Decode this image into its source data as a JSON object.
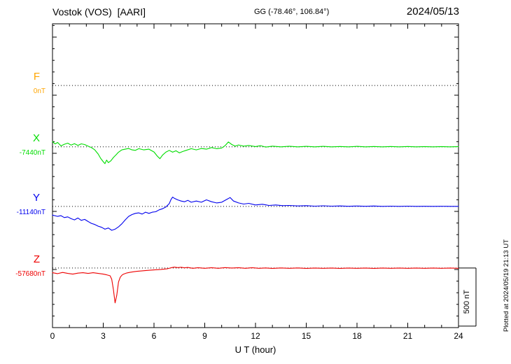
{
  "header": {
    "station": "Vostok (VOS)  [AARI]",
    "coords": "GG (-78.46°, 106.84°)",
    "date": "2024/05/13"
  },
  "x_axis": {
    "label": "U T (hour)",
    "ticks": [
      "0",
      "3",
      "6",
      "9",
      "12",
      "15",
      "18",
      "21",
      "24"
    ]
  },
  "scale_bar": {
    "label": "500 nT"
  },
  "plotted_note": "Plotted at 2024/05/19 21:13 UT",
  "chart_data": {
    "type": "line",
    "title": "Vostok (VOS) [AARI] magnetogram",
    "date": "2024/05/13",
    "xlabel": "U T (hour)",
    "x_range_hours": [
      0,
      24
    ],
    "x_major_tick_hours": 3,
    "x_minor_tick_hours": 1,
    "scale_bar_nT": 500,
    "grid": "dotted horizontal baseline per component",
    "units": "points are [UT hour, nT offset from component baseline]",
    "components": [
      {
        "name": "F",
        "color": "#ffa500",
        "baseline_label": "0nT",
        "baseline_nT": 0,
        "trace_visible": false,
        "points": []
      },
      {
        "name": "X",
        "color": "#00dd00",
        "baseline_label": "-7440nT",
        "baseline_nT": -7440,
        "trace_visible": true,
        "points": [
          [
            0,
            45
          ],
          [
            0.15,
            25
          ],
          [
            0.3,
            38
          ],
          [
            0.5,
            8
          ],
          [
            0.7,
            22
          ],
          [
            0.9,
            32
          ],
          [
            1.1,
            15
          ],
          [
            1.3,
            27
          ],
          [
            1.5,
            12
          ],
          [
            1.7,
            26
          ],
          [
            1.9,
            20
          ],
          [
            2.1,
            6
          ],
          [
            2.3,
            -6
          ],
          [
            2.5,
            -26
          ],
          [
            2.7,
            -62
          ],
          [
            2.85,
            -100
          ],
          [
            3,
            -128
          ],
          [
            3.1,
            -145
          ],
          [
            3.2,
            -114
          ],
          [
            3.3,
            -136
          ],
          [
            3.45,
            -120
          ],
          [
            3.6,
            -92
          ],
          [
            3.75,
            -70
          ],
          [
            3.9,
            -46
          ],
          [
            4.1,
            -26
          ],
          [
            4.3,
            -20
          ],
          [
            4.5,
            -14
          ],
          [
            4.7,
            -26
          ],
          [
            4.9,
            -30
          ],
          [
            5.1,
            -16
          ],
          [
            5.4,
            -26
          ],
          [
            5.7,
            -20
          ],
          [
            6,
            -44
          ],
          [
            6.2,
            -80
          ],
          [
            6.35,
            -102
          ],
          [
            6.5,
            -72
          ],
          [
            6.7,
            -46
          ],
          [
            6.9,
            -30
          ],
          [
            7.1,
            -46
          ],
          [
            7.3,
            -34
          ],
          [
            7.5,
            -52
          ],
          [
            7.7,
            -40
          ],
          [
            7.9,
            -30
          ],
          [
            8.2,
            -16
          ],
          [
            8.5,
            -26
          ],
          [
            8.8,
            -14
          ],
          [
            9.1,
            -20
          ],
          [
            9.4,
            -6
          ],
          [
            9.7,
            -16
          ],
          [
            10,
            -10
          ],
          [
            10.2,
            10
          ],
          [
            10.4,
            42
          ],
          [
            10.6,
            20
          ],
          [
            10.8,
            6
          ],
          [
            11,
            16
          ],
          [
            11.3,
            6
          ],
          [
            11.6,
            12
          ],
          [
            12,
            2
          ],
          [
            12.3,
            10
          ],
          [
            12.6,
            -2
          ],
          [
            13,
            6
          ],
          [
            13.5,
            0
          ],
          [
            14,
            5
          ],
          [
            14.5,
            0
          ],
          [
            15,
            4
          ],
          [
            15.5,
            0
          ],
          [
            16,
            4
          ],
          [
            16.5,
            0
          ],
          [
            17,
            3
          ],
          [
            17.5,
            0
          ],
          [
            18,
            4
          ],
          [
            18.5,
            0
          ],
          [
            19,
            3
          ],
          [
            19.5,
            0
          ],
          [
            20,
            3
          ],
          [
            20.5,
            0
          ],
          [
            21,
            3
          ],
          [
            21.5,
            0
          ],
          [
            22,
            2
          ],
          [
            22.5,
            0
          ],
          [
            23,
            2
          ],
          [
            23.5,
            0
          ],
          [
            24,
            2
          ]
        ]
      },
      {
        "name": "Y",
        "color": "#0000ee",
        "baseline_label": "-11140nT",
        "baseline_nT": -11140,
        "trace_visible": true,
        "points": [
          [
            0,
            -75
          ],
          [
            0.3,
            -86
          ],
          [
            0.5,
            -80
          ],
          [
            0.7,
            -96
          ],
          [
            0.9,
            -90
          ],
          [
            1.1,
            -106
          ],
          [
            1.3,
            -116
          ],
          [
            1.5,
            -100
          ],
          [
            1.7,
            -120
          ],
          [
            1.9,
            -112
          ],
          [
            2.1,
            -130
          ],
          [
            2.3,
            -146
          ],
          [
            2.5,
            -156
          ],
          [
            2.7,
            -170
          ],
          [
            2.9,
            -180
          ],
          [
            3.1,
            -196
          ],
          [
            3.3,
            -186
          ],
          [
            3.5,
            -206
          ],
          [
            3.7,
            -196
          ],
          [
            3.9,
            -176
          ],
          [
            4.1,
            -150
          ],
          [
            4.3,
            -116
          ],
          [
            4.5,
            -86
          ],
          [
            4.7,
            -70
          ],
          [
            4.9,
            -60
          ],
          [
            5.1,
            -56
          ],
          [
            5.3,
            -66
          ],
          [
            5.5,
            -50
          ],
          [
            5.7,
            -60
          ],
          [
            5.9,
            -50
          ],
          [
            6.1,
            -46
          ],
          [
            6.3,
            -30
          ],
          [
            6.5,
            -20
          ],
          [
            6.7,
            -6
          ],
          [
            6.9,
            24
          ],
          [
            7,
            58
          ],
          [
            7.1,
            80
          ],
          [
            7.2,
            70
          ],
          [
            7.4,
            56
          ],
          [
            7.6,
            46
          ],
          [
            7.8,
            40
          ],
          [
            8,
            52
          ],
          [
            8.2,
            36
          ],
          [
            8.5,
            46
          ],
          [
            8.8,
            36
          ],
          [
            9.1,
            56
          ],
          [
            9.4,
            40
          ],
          [
            9.7,
            30
          ],
          [
            10,
            36
          ],
          [
            10.3,
            60
          ],
          [
            10.5,
            76
          ],
          [
            10.7,
            46
          ],
          [
            11,
            30
          ],
          [
            11.3,
            20
          ],
          [
            11.6,
            26
          ],
          [
            12,
            12
          ],
          [
            12.4,
            18
          ],
          [
            12.8,
            8
          ],
          [
            13.2,
            12
          ],
          [
            13.6,
            6
          ],
          [
            14,
            8
          ],
          [
            14.5,
            4
          ],
          [
            15,
            6
          ],
          [
            15.5,
            2
          ],
          [
            16,
            5
          ],
          [
            16.5,
            2
          ],
          [
            17,
            4
          ],
          [
            17.5,
            1
          ],
          [
            18,
            3
          ],
          [
            18.5,
            1
          ],
          [
            19,
            3
          ],
          [
            19.5,
            0
          ],
          [
            20,
            2
          ],
          [
            20.5,
            0
          ],
          [
            21,
            2
          ],
          [
            21.5,
            0
          ],
          [
            22,
            1
          ],
          [
            22.5,
            0
          ],
          [
            23,
            1
          ],
          [
            23.5,
            0
          ],
          [
            24,
            0
          ]
        ]
      },
      {
        "name": "Z",
        "color": "#ee0000",
        "baseline_label": "-57680nT",
        "baseline_nT": -57680,
        "trace_visible": true,
        "points": [
          [
            0,
            -40
          ],
          [
            0.3,
            -48
          ],
          [
            0.6,
            -38
          ],
          [
            0.9,
            -46
          ],
          [
            1.2,
            -52
          ],
          [
            1.5,
            -44
          ],
          [
            1.8,
            -40
          ],
          [
            2.1,
            -46
          ],
          [
            2.4,
            -40
          ],
          [
            2.7,
            -46
          ],
          [
            3,
            -52
          ],
          [
            3.2,
            -58
          ],
          [
            3.4,
            -66
          ],
          [
            3.5,
            -96
          ],
          [
            3.6,
            -185
          ],
          [
            3.7,
            -300
          ],
          [
            3.8,
            -235
          ],
          [
            3.9,
            -120
          ],
          [
            4,
            -80
          ],
          [
            4.1,
            -62
          ],
          [
            4.2,
            -52
          ],
          [
            4.4,
            -42
          ],
          [
            4.6,
            -36
          ],
          [
            4.8,
            -32
          ],
          [
            5,
            -28
          ],
          [
            5.3,
            -24
          ],
          [
            5.6,
            -20
          ],
          [
            6,
            -16
          ],
          [
            6.4,
            -12
          ],
          [
            6.8,
            -6
          ],
          [
            7,
            2
          ],
          [
            7.2,
            8
          ],
          [
            7.4,
            4
          ],
          [
            7.6,
            7
          ],
          [
            7.8,
            2
          ],
          [
            8,
            5
          ],
          [
            8.3,
            -2
          ],
          [
            8.6,
            3
          ],
          [
            9,
            -2
          ],
          [
            9.4,
            3
          ],
          [
            9.8,
            -2
          ],
          [
            10.2,
            4
          ],
          [
            10.6,
            0
          ],
          [
            11,
            3
          ],
          [
            11.4,
            -2
          ],
          [
            11.8,
            3
          ],
          [
            12.2,
            -2
          ],
          [
            12.6,
            1
          ],
          [
            13,
            -3
          ],
          [
            13.5,
            1
          ],
          [
            14,
            -2
          ],
          [
            14.5,
            1
          ],
          [
            15,
            -3
          ],
          [
            15.5,
            0
          ],
          [
            16,
            -2
          ],
          [
            16.5,
            0
          ],
          [
            17,
            -3
          ],
          [
            17.5,
            0
          ],
          [
            18,
            -2
          ],
          [
            18.5,
            0
          ],
          [
            19,
            -3
          ],
          [
            19.5,
            0
          ],
          [
            20,
            -2
          ],
          [
            20.5,
            0
          ],
          [
            21,
            -2
          ],
          [
            21.5,
            0
          ],
          [
            22,
            -2
          ],
          [
            22.5,
            0
          ],
          [
            23,
            -2
          ],
          [
            23.5,
            0
          ],
          [
            24,
            -2
          ]
        ]
      }
    ]
  }
}
